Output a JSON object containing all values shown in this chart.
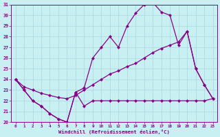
{
  "xlabel": "Windchill (Refroidissement éolien,°C)",
  "background_color": "#c8eff2",
  "grid_color": "#a8d8dc",
  "line_color": "#880088",
  "hours": [
    0,
    1,
    2,
    3,
    4,
    5,
    6,
    7,
    8,
    9,
    10,
    11,
    12,
    13,
    14,
    15,
    16,
    17,
    18,
    19,
    20,
    21,
    22,
    23
  ],
  "curve_arc": [
    24.0,
    23.0,
    22.0,
    21.5,
    20.8,
    20.3,
    20.0,
    22.8,
    23.2,
    26.0,
    27.0,
    28.0,
    27.0,
    29.0,
    30.2,
    31.0,
    31.2,
    30.3,
    30.0,
    27.2,
    28.5,
    25.0,
    23.5,
    22.2
  ],
  "curve_diag": [
    24.0,
    23.3,
    23.0,
    22.7,
    22.5,
    22.3,
    22.2,
    22.5,
    23.0,
    23.5,
    24.0,
    24.5,
    24.8,
    25.2,
    25.5,
    26.0,
    26.5,
    26.9,
    27.2,
    27.5,
    28.5,
    25.0,
    23.5,
    22.2
  ],
  "curve_flat": [
    24.0,
    23.0,
    22.0,
    21.5,
    20.8,
    20.3,
    20.0,
    22.8,
    21.5,
    22.0,
    22.0,
    22.0,
    22.0,
    22.0,
    22.0,
    22.0,
    22.0,
    22.0,
    22.0,
    22.0,
    22.0,
    22.0,
    22.0,
    22.2
  ],
  "ylim": [
    20,
    31
  ],
  "ytick_step": 1,
  "figsize": [
    3.2,
    2.0
  ],
  "dpi": 100
}
